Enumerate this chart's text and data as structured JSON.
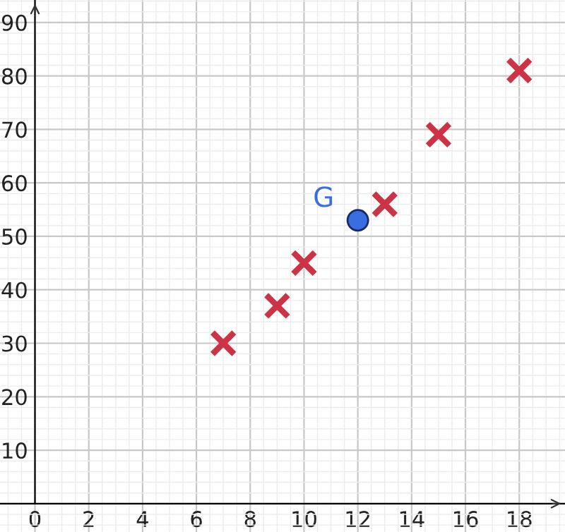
{
  "chart_data": {
    "type": "scatter",
    "xlim": [
      -1.3,
      19.7
    ],
    "ylim": [
      -5.3,
      94.2
    ],
    "xticks": [
      0,
      2,
      4,
      6,
      8,
      10,
      12,
      14,
      16,
      18
    ],
    "yticks": [
      {
        "value": 0,
        "label": null
      },
      10,
      20,
      30,
      40,
      50,
      60,
      70,
      80,
      90
    ],
    "grid": true,
    "series": [
      {
        "color": "#cc3344",
        "marker": "cross",
        "x": [
          7,
          9,
          10,
          13,
          15,
          18
        ],
        "values": [
          30,
          37,
          45,
          56,
          69,
          81
        ]
      },
      {
        "name": "G",
        "color": "#3a6ee0",
        "marker": "circle",
        "x": [
          12
        ],
        "values": [
          53
        ]
      }
    ]
  }
}
